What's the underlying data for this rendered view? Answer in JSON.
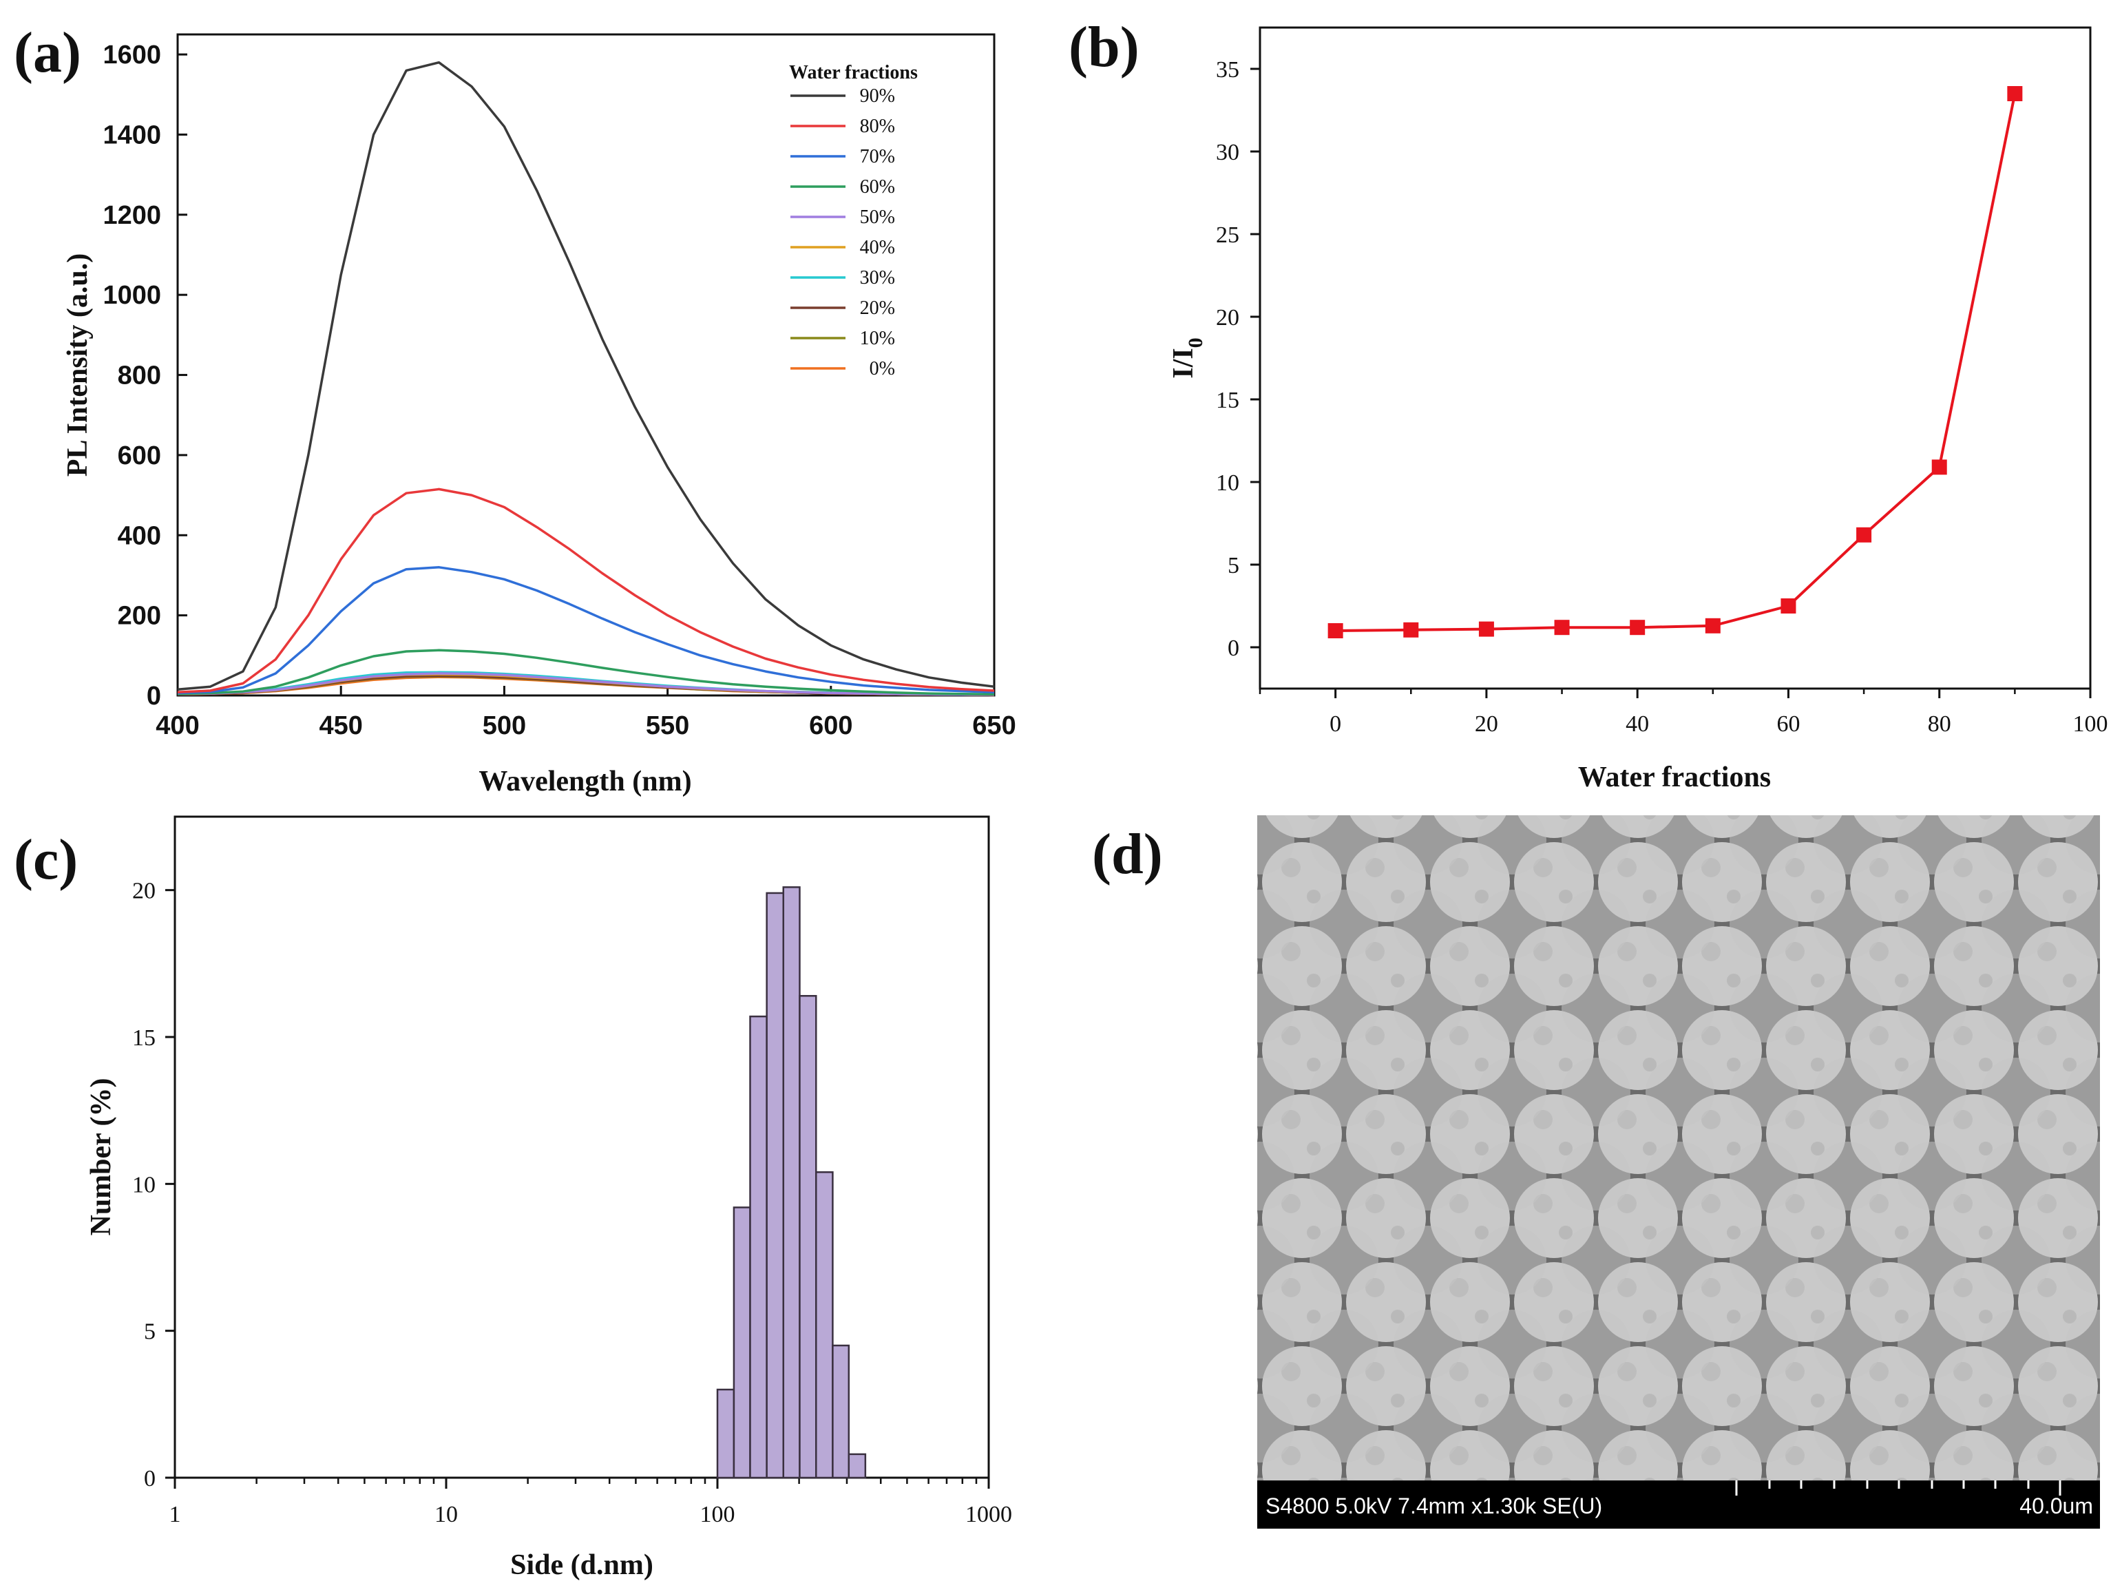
{
  "panels": {
    "a": "(a)",
    "b": "(b)",
    "c": "(c)",
    "d": "(d)"
  },
  "chart_data": [
    {
      "id": "a",
      "type": "line",
      "title": "",
      "xlabel": "Wavelength (nm)",
      "ylabel": "PL Intensity (a.u.)",
      "xlim": [
        400,
        650
      ],
      "ylim": [
        0,
        1650
      ],
      "xticks": [
        400,
        450,
        500,
        550,
        600,
        650
      ],
      "yticks": [
        0,
        200,
        400,
        600,
        800,
        1000,
        1200,
        1400,
        1600
      ],
      "legend_title": "Water fractions",
      "legend_position": "top-right",
      "x": [
        400,
        410,
        420,
        430,
        440,
        450,
        460,
        470,
        480,
        490,
        500,
        510,
        520,
        530,
        540,
        550,
        560,
        570,
        580,
        590,
        600,
        610,
        620,
        630,
        640,
        650
      ],
      "series": [
        {
          "name": "90%",
          "color": "#3a3a3a",
          "values": [
            15,
            22,
            60,
            220,
            600,
            1050,
            1400,
            1560,
            1580,
            1520,
            1420,
            1260,
            1080,
            890,
            720,
            570,
            440,
            330,
            240,
            175,
            125,
            90,
            65,
            45,
            32,
            22
          ]
        },
        {
          "name": "80%",
          "color": "#e8383a",
          "values": [
            8,
            12,
            30,
            90,
            200,
            340,
            450,
            505,
            515,
            500,
            470,
            420,
            365,
            305,
            250,
            200,
            158,
            122,
            92,
            70,
            52,
            39,
            29,
            21,
            16,
            12
          ]
        },
        {
          "name": "70%",
          "color": "#2f6fd8",
          "values": [
            6,
            9,
            20,
            55,
            125,
            210,
            280,
            315,
            320,
            308,
            290,
            262,
            228,
            192,
            158,
            128,
            100,
            78,
            60,
            45,
            34,
            25,
            19,
            14,
            11,
            8
          ]
        },
        {
          "name": "60%",
          "color": "#2e9e5e",
          "values": [
            4,
            6,
            10,
            22,
            45,
            75,
            98,
            110,
            113,
            110,
            104,
            94,
            82,
            69,
            57,
            46,
            36,
            28,
            22,
            17,
            13,
            10,
            7,
            5,
            4,
            3
          ]
        },
        {
          "name": "50%",
          "color": "#a07ee0",
          "values": [
            4,
            5,
            8,
            14,
            25,
            38,
            48,
            53,
            55,
            54,
            51,
            46,
            40,
            34,
            28,
            22,
            18,
            14,
            11,
            8,
            6,
            5,
            4,
            3,
            2,
            2
          ]
        },
        {
          "name": "40%",
          "color": "#e0a020",
          "values": [
            4,
            5,
            8,
            13,
            24,
            37,
            47,
            52,
            53,
            52,
            49,
            44,
            39,
            33,
            27,
            22,
            17,
            13,
            10,
            8,
            6,
            5,
            4,
            3,
            2,
            2
          ]
        },
        {
          "name": "30%",
          "color": "#27c9d0",
          "values": [
            5,
            6,
            9,
            16,
            28,
            42,
            52,
            57,
            58,
            57,
            54,
            49,
            43,
            36,
            30,
            24,
            19,
            15,
            11,
            9,
            7,
            5,
            4,
            3,
            2,
            2
          ]
        },
        {
          "name": "20%",
          "color": "#7a3e2e",
          "values": [
            3,
            4,
            7,
            12,
            22,
            34,
            43,
            48,
            49,
            48,
            45,
            41,
            36,
            30,
            25,
            20,
            16,
            12,
            9,
            7,
            5,
            4,
            3,
            2,
            2,
            1
          ]
        },
        {
          "name": "10%",
          "color": "#8a8a1a",
          "values": [
            3,
            4,
            7,
            12,
            21,
            33,
            42,
            47,
            48,
            47,
            44,
            40,
            35,
            29,
            24,
            20,
            15,
            12,
            9,
            7,
            5,
            4,
            3,
            2,
            2,
            1
          ]
        },
        {
          "name": "0%",
          "color": "#f07020",
          "values": [
            3,
            4,
            6,
            11,
            19,
            30,
            39,
            44,
            46,
            45,
            42,
            38,
            33,
            28,
            23,
            19,
            15,
            11,
            9,
            7,
            5,
            4,
            3,
            2,
            2,
            1
          ]
        }
      ]
    },
    {
      "id": "b",
      "type": "line",
      "title": "",
      "xlabel": "Water fractions",
      "ylabel": "I/I",
      "ylabel_sub": "0",
      "xlim": [
        -10,
        100
      ],
      "ylim": [
        -2.5,
        37.5
      ],
      "xticks": [
        0,
        20,
        40,
        60,
        80,
        100
      ],
      "yticks": [
        0,
        5,
        10,
        15,
        20,
        25,
        30,
        35
      ],
      "color": "#e8141e",
      "x": [
        0,
        10,
        20,
        30,
        40,
        50,
        60,
        70,
        80,
        90
      ],
      "values": [
        1.0,
        1.05,
        1.1,
        1.2,
        1.2,
        1.3,
        2.5,
        6.8,
        10.9,
        33.5
      ]
    },
    {
      "id": "c",
      "type": "bar",
      "title": "",
      "xlabel": "Side (d.nm)",
      "ylabel": "Number (%)",
      "xscale": "log",
      "xlim": [
        1,
        1000
      ],
      "ylim": [
        0,
        22.5
      ],
      "xticks": [
        "1",
        "10",
        "100",
        "1000"
      ],
      "yticks": [
        0,
        5,
        10,
        15,
        20
      ],
      "color": "#b9a9d6",
      "bins": [
        [
          100,
          115
        ],
        [
          115,
          132
        ],
        [
          132,
          152
        ],
        [
          152,
          175
        ],
        [
          175,
          201
        ],
        [
          201,
          231
        ],
        [
          231,
          266
        ],
        [
          266,
          305
        ],
        [
          305,
          351
        ]
      ],
      "values": [
        3.0,
        9.2,
        15.7,
        19.9,
        20.1,
        16.4,
        10.4,
        4.5,
        0.8
      ]
    }
  ],
  "sem": {
    "info": "S4800 5.0kV 7.4mm x1.30k SE(U)",
    "scale": "40.0um"
  }
}
